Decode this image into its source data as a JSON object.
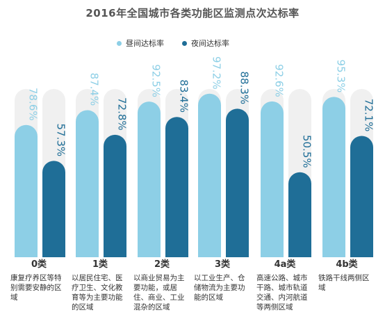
{
  "title": "2016年全国城市各类功能区监测点次达标率",
  "legend": {
    "day": "昼间达标率",
    "night": "夜间达标率"
  },
  "colors": {
    "day": "#8dcfe6",
    "night": "#1f6e97",
    "track": "#f0f0f0",
    "day_label": "#8dcfe6",
    "night_label": "#1f6e97"
  },
  "chart_data": {
    "type": "bar",
    "title": "2016年全国城市各类功能区监测点次达标率",
    "unit": "%",
    "ylim": [
      0,
      100
    ],
    "categories": [
      "0类",
      "1类",
      "2类",
      "3类",
      "4a类",
      "4b类"
    ],
    "category_descriptions": [
      "康复疗养区等特别需要安静的区域",
      "以居民住宅、医疗卫生、文化教育等为主要功能的区域",
      "以商业贸易为主要功能，或居住、商业、工业混杂的区域",
      "以工业生产、仓储物流为主要功能的区域",
      "高速公路、城市干路、城市轨道交通、内河航道等两侧区域",
      "铁路干线两侧区域"
    ],
    "series": [
      {
        "name": "昼间达标率",
        "values": [
          78.6,
          87.4,
          92.5,
          97.2,
          92.6,
          95.3
        ]
      },
      {
        "name": "夜间达标率",
        "values": [
          57.3,
          72.8,
          83.4,
          88.3,
          50.5,
          72.1
        ]
      }
    ],
    "value_labels": {
      "day": [
        "78.6%",
        "87.4%",
        "92.5%",
        "97.2%",
        "92.6%",
        "95.3%"
      ],
      "night": [
        "57.3%",
        "72.8%",
        "83.4%",
        "88.3%",
        "50.5%",
        "72.1%"
      ]
    }
  }
}
